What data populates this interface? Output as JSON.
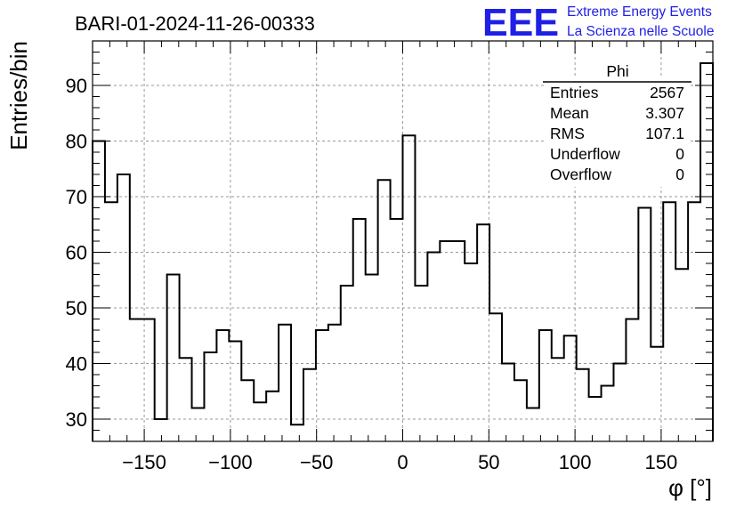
{
  "title": "BARI-01-2024-11-26-00333",
  "logo": {
    "mark": "EEE",
    "line1": "Extreme Energy Events",
    "line2": "La Scienza nelle Scuole",
    "color": "#1f1fe6"
  },
  "stats_box": {
    "name": "Phi",
    "rows": [
      {
        "label": "Entries",
        "value": "2567"
      },
      {
        "label": "Mean",
        "value": "3.307"
      },
      {
        "label": "RMS",
        "value": "107.1"
      },
      {
        "label": "Underflow",
        "value": "0"
      },
      {
        "label": "Overflow",
        "value": "0"
      }
    ]
  },
  "chart_data": {
    "type": "histogram",
    "title": "BARI-01-2024-11-26-00333",
    "xlabel": "φ [°]",
    "ylabel": "Entries/bin",
    "xlim": [
      -180,
      180
    ],
    "ylim": [
      26,
      98
    ],
    "grid": true,
    "bin_width": 7.2,
    "x_ticks": [
      -150,
      -100,
      -50,
      0,
      50,
      100,
      150
    ],
    "x_tick_labels": [
      "−150",
      "−100",
      "−50",
      "0",
      "50",
      "100",
      "150"
    ],
    "y_ticks": [
      30,
      40,
      50,
      60,
      70,
      80,
      90
    ],
    "y_tick_labels": [
      "30",
      "40",
      "50",
      "60",
      "70",
      "80",
      "90"
    ],
    "values": [
      80,
      69,
      74,
      48,
      48,
      30,
      56,
      41,
      32,
      42,
      46,
      44,
      37,
      33,
      35,
      47,
      29,
      39,
      46,
      47,
      54,
      66,
      56,
      73,
      66,
      81,
      54,
      60,
      62,
      62,
      58,
      65,
      49,
      40,
      37,
      32,
      46,
      41,
      45,
      39,
      34,
      36,
      40,
      48,
      68,
      43,
      69,
      57,
      69,
      94
    ]
  }
}
